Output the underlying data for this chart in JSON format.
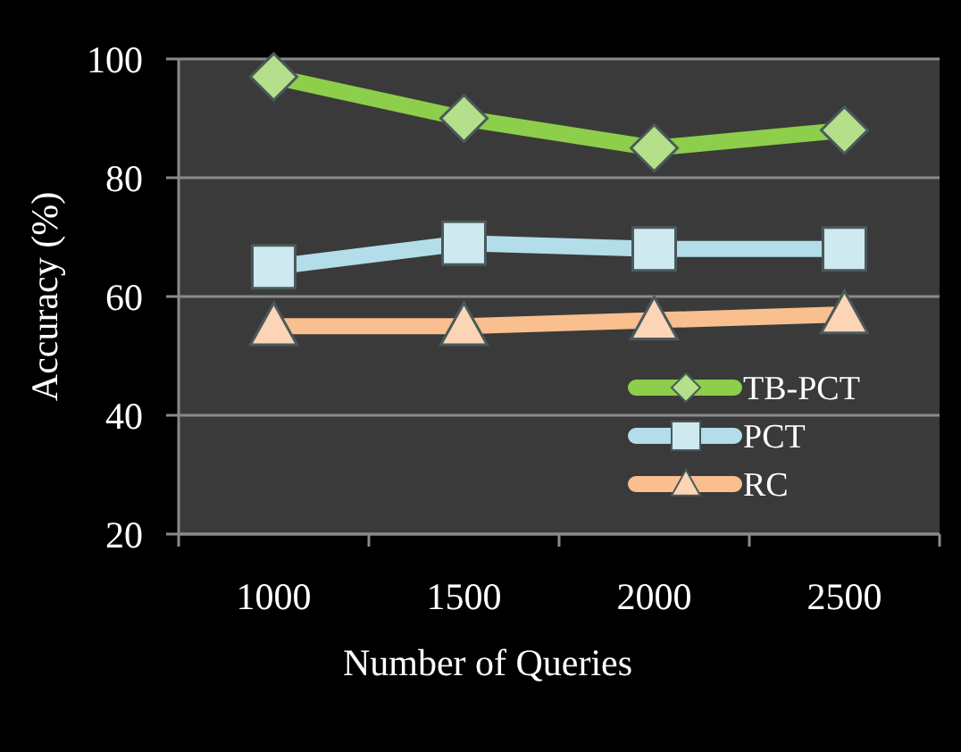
{
  "chart_data": {
    "type": "line",
    "xlabel": "Number of Queries",
    "ylabel": "Accuracy (%)",
    "categories": [
      "1000",
      "1500",
      "2000",
      "2500"
    ],
    "series": [
      {
        "name": "TB-PCT",
        "color": "#8dce4b",
        "values": [
          97,
          90,
          85,
          88
        ],
        "marker": "diamond"
      },
      {
        "name": "PCT",
        "color": "#b3dde8",
        "values": [
          65,
          69,
          68,
          68
        ],
        "marker": "square"
      },
      {
        "name": "RC",
        "color": "#f9bf8f",
        "values": [
          55,
          55,
          56,
          57
        ],
        "marker": "triangle"
      }
    ],
    "ylim": [
      20,
      100
    ],
    "yticks": [
      20,
      40,
      60,
      80,
      100
    ],
    "grid": "y",
    "legend": "bottom right"
  }
}
